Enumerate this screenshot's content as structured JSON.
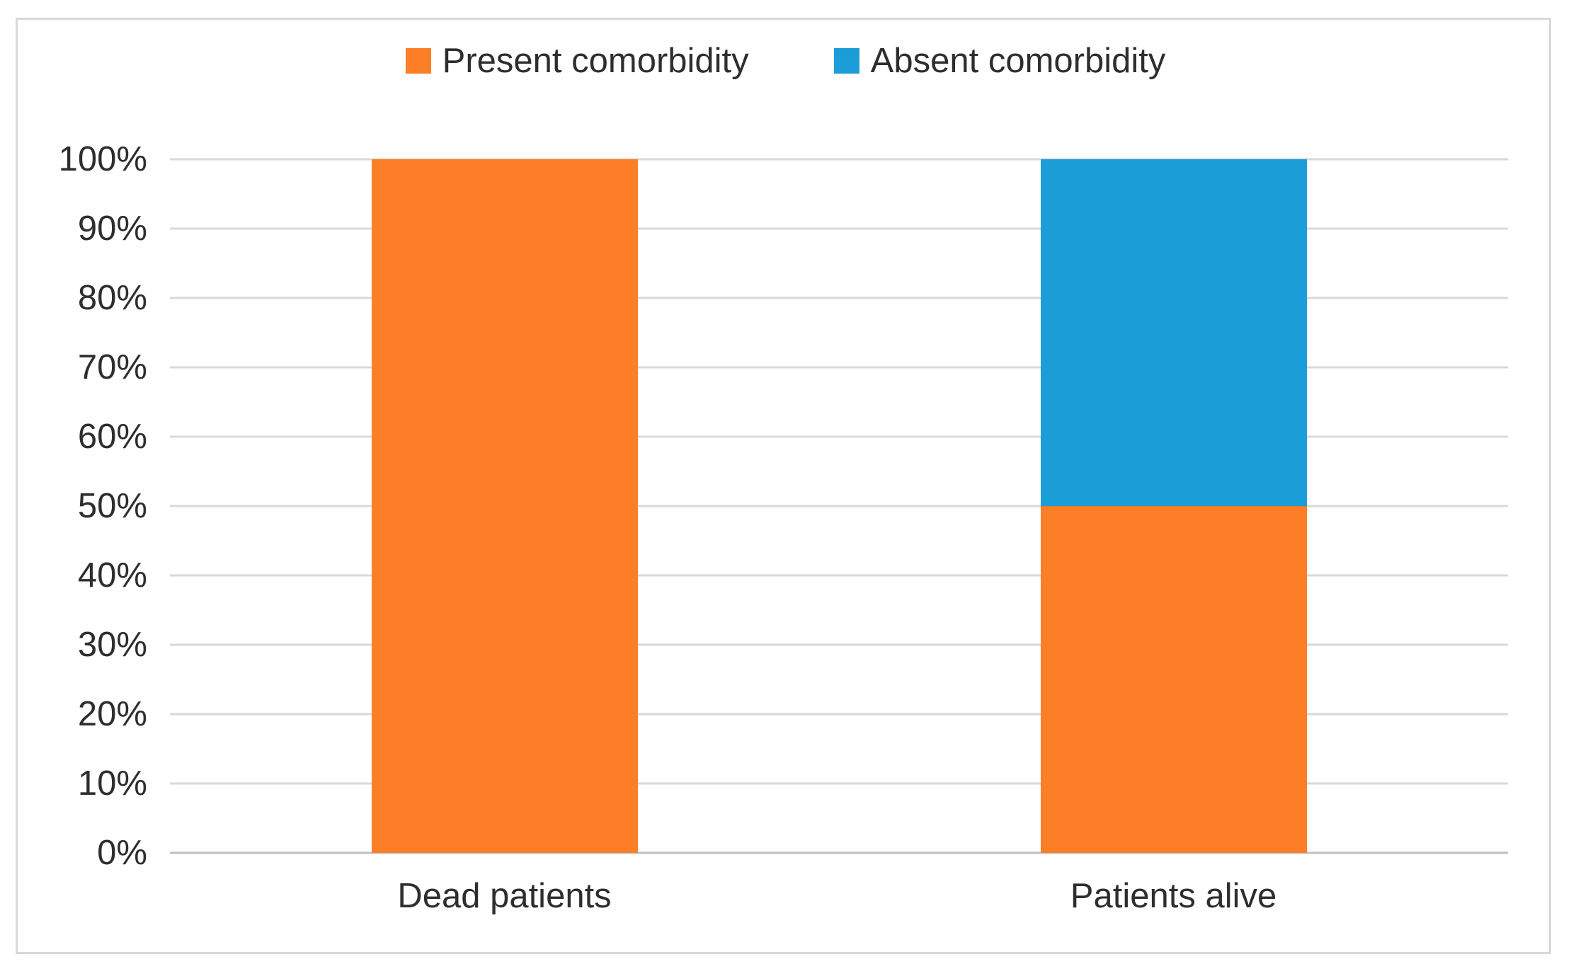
{
  "figure": {
    "background": "#ffffff",
    "frame_border_color": "#D9D9D9"
  },
  "chart_data": {
    "type": "bar",
    "subtype": "stacked-100-percent-column",
    "title": "",
    "xlabel": "",
    "ylabel": "",
    "categories": [
      "Dead patients",
      "Patients alive"
    ],
    "series": [
      {
        "name": "Present comorbidity",
        "color": "#FC7E26",
        "values": [
          100,
          50
        ]
      },
      {
        "name": "Absent comorbidity",
        "color": "#1B9DD8",
        "values": [
          0,
          50
        ]
      }
    ],
    "ylim": [
      0,
      100
    ],
    "yticks": [
      0,
      10,
      20,
      30,
      40,
      50,
      60,
      70,
      80,
      90,
      100
    ],
    "ytick_suffix": "%",
    "grid": "horizontal",
    "gridline_color": "#D9D9D9",
    "axis_line_color": "#BFBFBF",
    "text_color": "#2e2e2e",
    "legend_position": "top-center"
  }
}
